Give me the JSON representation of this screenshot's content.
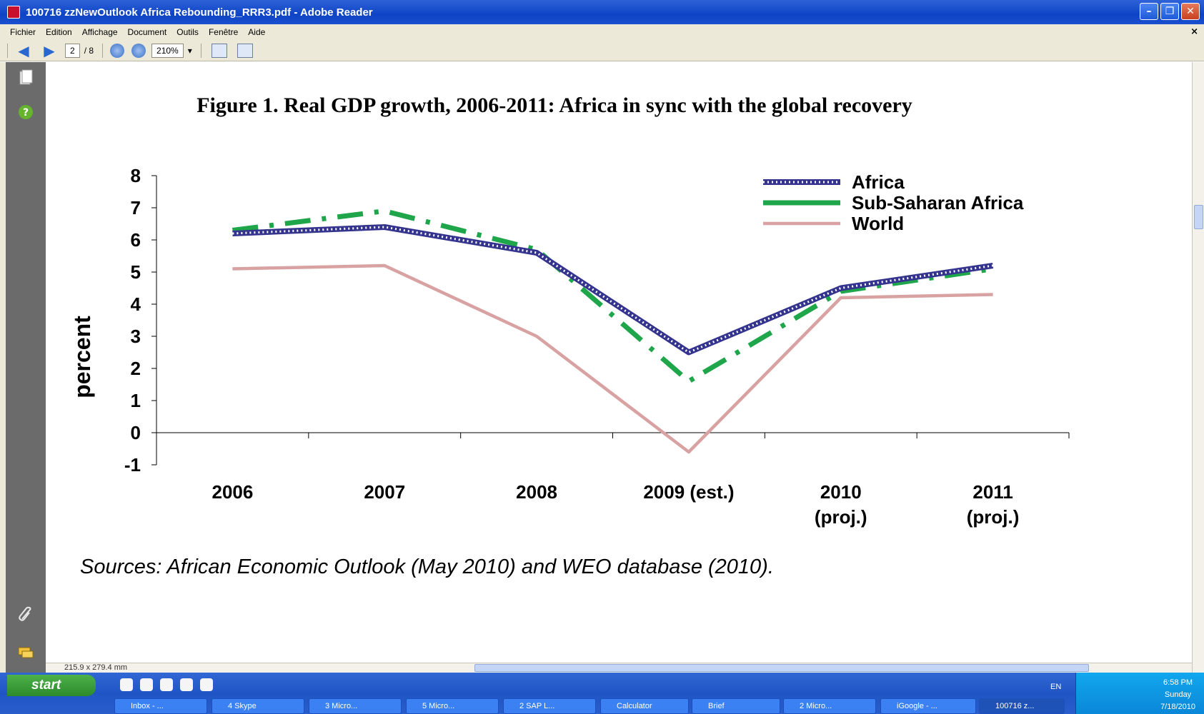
{
  "window": {
    "title": "100716 zzNewOutlook Africa Rebounding_RRR3.pdf - Adobe Reader",
    "min_label": "–",
    "max_label": "❐",
    "close_label": "✕"
  },
  "menu": {
    "items": [
      "Fichier",
      "Edition",
      "Affichage",
      "Document",
      "Outils",
      "Fenêtre",
      "Aide"
    ],
    "close_doc_label": "×"
  },
  "toolbar": {
    "page_current": "2",
    "page_total": "/ 8",
    "zoom": "210%",
    "zoom_arrow": "▾"
  },
  "status": {
    "page_size": "215.9 x 279.4 mm"
  },
  "chart_data": {
    "type": "line",
    "title": "Figure 1. Real GDP growth, 2006-2011: Africa in sync with the global recovery",
    "ylabel": "percent",
    "xlabel": "",
    "ylim": [
      -1,
      8
    ],
    "yticks": [
      -1,
      0,
      1,
      2,
      3,
      4,
      5,
      6,
      7,
      8
    ],
    "categories": [
      "2006",
      "2007",
      "2008",
      "2009 (est.)",
      "2010\n(proj.)",
      "2011\n(proj.)"
    ],
    "category_lines": [
      [
        "2006"
      ],
      [
        "2007"
      ],
      [
        "2008"
      ],
      [
        "2009 (est.)"
      ],
      [
        "2010",
        "(proj.)"
      ],
      [
        "2011",
        "(proj.)"
      ]
    ],
    "legend_position": "top-right",
    "grid": false,
    "series": [
      {
        "name": "Africa",
        "values": [
          6.2,
          6.4,
          5.6,
          2.5,
          4.5,
          5.2
        ],
        "color": "#34348f",
        "style": "dotted-thick"
      },
      {
        "name": "Sub-Saharan Africa",
        "values": [
          6.3,
          6.9,
          5.7,
          1.6,
          4.4,
          5.1
        ],
        "color": "#1fa64b",
        "style": "dash-dot"
      },
      {
        "name": "World",
        "values": [
          5.1,
          5.2,
          3.0,
          -0.6,
          4.2,
          4.3
        ],
        "color": "#d9a2a2",
        "style": "solid"
      }
    ],
    "source": "Sources: African Economic Outlook (May 2010) and WEO database (2010)."
  },
  "taskbar": {
    "start_label": "start",
    "buttons": [
      "Inbox - ...",
      "4 Skype",
      "3 Micro...",
      "5 Micro...",
      "2 SAP L...",
      "Calculator",
      "Brief",
      "2 Micro...",
      "iGoogle - ...",
      "100716 z..."
    ],
    "lang": "EN",
    "time": "6:58 PM",
    "day": "Sunday",
    "date": "7/18/2010"
  },
  "colors": {
    "titlebar": "#0d44c5",
    "panel": "#6b6b6b",
    "taskbar": "#245edb",
    "start": "#3c9a3a"
  }
}
